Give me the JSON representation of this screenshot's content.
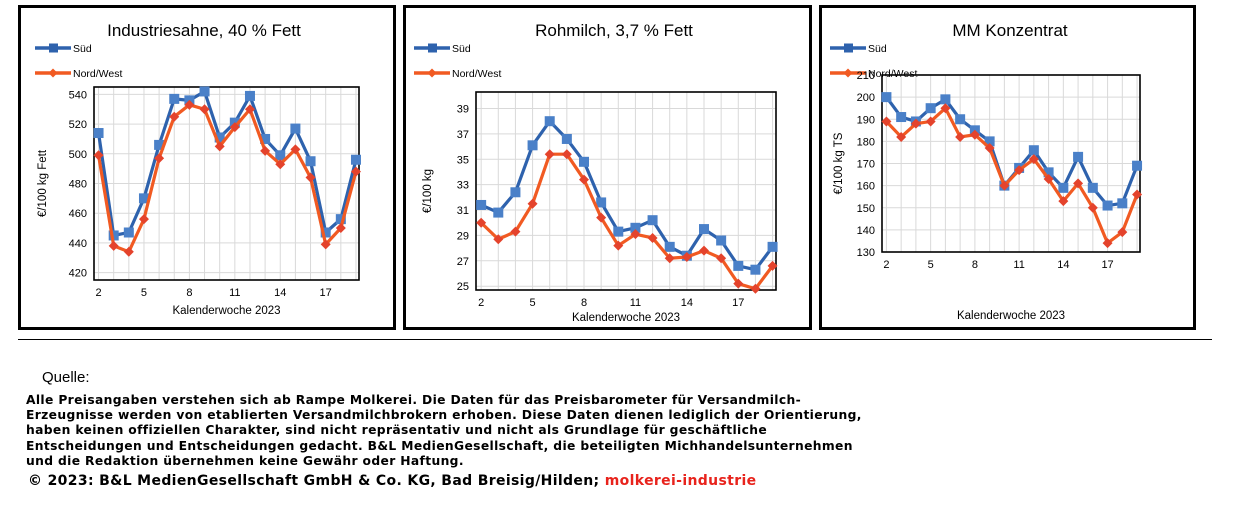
{
  "chart_data": [
    {
      "type": "line",
      "title": "Industriesahne, 40 % Fett",
      "xlabel": "Kalenderwoche 2023",
      "ylabel": "€/100 kg Fett",
      "xticks": [
        2,
        5,
        8,
        11,
        14,
        17
      ],
      "yticks": [
        420,
        440,
        460,
        480,
        500,
        520,
        540
      ],
      "xlim": [
        1.7,
        19.2
      ],
      "ylim": [
        415,
        545
      ],
      "grid": true,
      "legend_position": "top-left",
      "x": [
        2,
        3,
        4,
        5,
        6,
        7,
        8,
        9,
        10,
        11,
        12,
        13,
        14,
        15,
        16,
        17,
        18,
        19
      ],
      "series": [
        {
          "name": "Süd",
          "color": "#2e62ad",
          "values": [
            514,
            445,
            447,
            470,
            506,
            537,
            536,
            542,
            511,
            521,
            539,
            510,
            499,
            517,
            495,
            447,
            456,
            496
          ]
        },
        {
          "name": "Nord/West",
          "color": "#f15a22",
          "values": [
            499,
            438,
            434,
            456,
            497,
            525,
            533,
            530,
            505,
            518,
            530,
            502,
            493,
            503,
            484,
            439,
            450,
            488
          ]
        }
      ]
    },
    {
      "type": "line",
      "title": "Rohmilch, 3,7 % Fett",
      "xlabel": "Kalenderwoche 2023",
      "ylabel": "€/100 kg",
      "xticks": [
        2,
        5,
        8,
        11,
        14,
        17
      ],
      "yticks": [
        25,
        27,
        29,
        31,
        33,
        35,
        37,
        39
      ],
      "xlim": [
        1.7,
        19.2
      ],
      "ylim": [
        24.7,
        40.3
      ],
      "grid": true,
      "legend_position": "top-left",
      "x": [
        2,
        3,
        4,
        5,
        6,
        7,
        8,
        9,
        10,
        11,
        12,
        13,
        14,
        15,
        16,
        17,
        18,
        19
      ],
      "series": [
        {
          "name": "Süd",
          "color": "#2e62ad",
          "values": [
            31.4,
            30.8,
            32.4,
            36.1,
            38.0,
            36.6,
            34.8,
            31.6,
            29.3,
            29.6,
            30.2,
            28.1,
            27.4,
            29.5,
            28.6,
            26.6,
            26.3,
            28.1
          ]
        },
        {
          "name": "Nord/West",
          "color": "#f15a22",
          "values": [
            30.0,
            28.7,
            29.3,
            31.5,
            35.4,
            35.4,
            33.4,
            30.4,
            28.2,
            29.1,
            28.8,
            27.2,
            27.3,
            27.8,
            27.2,
            25.2,
            24.8,
            26.6
          ]
        }
      ]
    },
    {
      "type": "line",
      "title": "MM Konzentrat",
      "xlabel": "Kalenderwoche 2023",
      "ylabel": "€/100 kg TS",
      "xticks": [
        2,
        5,
        8,
        11,
        14,
        17
      ],
      "yticks": [
        130,
        140,
        150,
        160,
        170,
        180,
        190,
        200,
        210
      ],
      "xlim": [
        1.7,
        19.2
      ],
      "ylim": [
        130,
        210
      ],
      "grid": true,
      "legend_position": "top-left",
      "x": [
        2,
        3,
        4,
        5,
        6,
        7,
        8,
        9,
        10,
        11,
        12,
        13,
        14,
        15,
        16,
        17,
        18,
        19
      ],
      "series": [
        {
          "name": "Süd",
          "color": "#2e62ad",
          "values": [
            200,
            191,
            189,
            195,
            199,
            190,
            185,
            180,
            160,
            168,
            176,
            166,
            159,
            173,
            159,
            151,
            152,
            169
          ]
        },
        {
          "name": "Nord/West",
          "color": "#f15a22",
          "values": [
            189,
            182,
            188,
            189,
            195,
            182,
            183,
            177,
            160,
            167,
            172,
            163,
            153,
            161,
            150,
            134,
            139,
            156
          ]
        }
      ]
    }
  ],
  "footer": {
    "quelle": "Quelle:",
    "disclaimer_lines": [
      "Alle Preisangaben verstehen sich ab Rampe Molkerei. Die Daten für das Preisbarometer für Versandmilch-",
      "Erzeugnisse werden von etablierten Versandmilchbrokern erhoben. Diese Daten dienen lediglich der Orientierung,",
      "haben keinen offiziellen Charakter, sind nicht repräsentativ und nicht als Grundlage für geschäftliche",
      "Entscheidungen und Entscheidungen gedacht. B&L MedienGesellschaft, die beteiligten Michhandelsunternehmen",
      "und die Redaktion übernehmen keine Gewähr oder Haftung."
    ],
    "copyright": "© 2023: B&L MedienGesellschaft GmbH & Co. KG, Bad Breisig/Hilden;",
    "brand": "molkerei-industrie"
  }
}
